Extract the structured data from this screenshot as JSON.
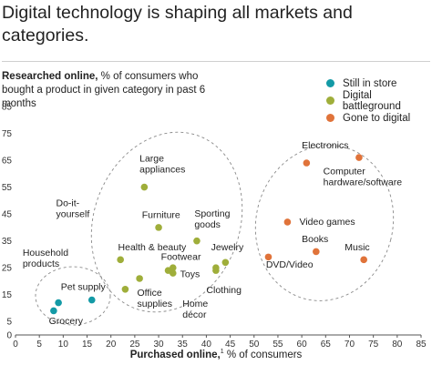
{
  "header": {
    "title": "Digital technology is shaping all markets and categories."
  },
  "chart_data": {
    "type": "scatter",
    "ylabel_bold": "Researched online,",
    "ylabel_rest": " % of consumers who bought a product in given category in past 6 months",
    "xlabel_bold": "Purchased online,",
    "xlabel_sup": "1",
    "xlabel_rest": " % of consumers",
    "xlim": [
      0,
      85
    ],
    "ylim": [
      0,
      85
    ],
    "xticks": [
      0,
      5,
      10,
      15,
      20,
      25,
      30,
      35,
      40,
      45,
      50,
      55,
      60,
      65,
      70,
      75,
      80,
      85
    ],
    "yticks": [
      0,
      5,
      15,
      25,
      35,
      45,
      55,
      65,
      75,
      85
    ],
    "grid": false,
    "legend_position": "top-right",
    "series": [
      {
        "name": "Still in store",
        "color": "#139aa6",
        "points": [
          {
            "label": "Household products",
            "x": 9,
            "y": 12
          },
          {
            "label": "",
            "x": 8,
            "y": 9
          },
          {
            "label": "Pet supply",
            "x": 16,
            "y": 13
          }
        ]
      },
      {
        "name": "Digital battleground",
        "color": "#9fae3a",
        "points": [
          {
            "label": "Large appliances",
            "x": 27,
            "y": 55
          },
          {
            "label": "Furniture",
            "x": 30,
            "y": 40
          },
          {
            "label": "Do-it-yourself",
            "x": 22,
            "y": 28
          },
          {
            "label": "Health & beauty",
            "x": 26,
            "y": 21
          },
          {
            "label": "Office supplies",
            "x": 23,
            "y": 17
          },
          {
            "label": "Footwear",
            "x": 32,
            "y": 24
          },
          {
            "label": "",
            "x": 33,
            "y": 25
          },
          {
            "label": "Home décor",
            "x": 33,
            "y": 23
          },
          {
            "label": "Sporting goods",
            "x": 38,
            "y": 35
          },
          {
            "label": "Toys",
            "x": 42,
            "y": 24
          },
          {
            "label": "Clothing",
            "x": 42,
            "y": 25
          },
          {
            "label": "Jewelry",
            "x": 44,
            "y": 27
          }
        ]
      },
      {
        "name": "Gone to digital",
        "color": "#e0733a",
        "points": [
          {
            "label": "Electronics",
            "x": 61,
            "y": 64
          },
          {
            "label": "Computer hardware/software",
            "x": 72,
            "y": 66
          },
          {
            "label": "Video games",
            "x": 57,
            "y": 42
          },
          {
            "label": "Books",
            "x": 63,
            "y": 31
          },
          {
            "label": "DVD/Video",
            "x": 53,
            "y": 29
          },
          {
            "label": "Music",
            "x": 73,
            "y": 28
          }
        ]
      }
    ],
    "annotations": [
      {
        "lines": [
          "Household",
          "products"
        ],
        "x": 1.5,
        "y": 29.5
      },
      {
        "lines": [
          "Grocery"
        ],
        "x": 7,
        "y": 4
      },
      {
        "lines": [
          "Pet supply"
        ],
        "x": 9.5,
        "y": 16.8
      },
      {
        "lines": [
          "Large",
          "appliances"
        ],
        "x": 26,
        "y": 64.5
      },
      {
        "lines": [
          "Furniture"
        ],
        "x": 26.5,
        "y": 43.5
      },
      {
        "lines": [
          "Do-it-",
          "yourself"
        ],
        "x": 8.5,
        "y": 48
      },
      {
        "lines": [
          "Health & beauty"
        ],
        "x": 21.5,
        "y": 31.5
      },
      {
        "lines": [
          "Footwear"
        ],
        "x": 30.5,
        "y": 28
      },
      {
        "lines": [
          "Sporting",
          "goods"
        ],
        "x": 37.5,
        "y": 44
      },
      {
        "lines": [
          "Jewelry"
        ],
        "x": 41,
        "y": 31.5
      },
      {
        "lines": [
          "Toys"
        ],
        "x": 34.5,
        "y": 21.5
      },
      {
        "lines": [
          "Office",
          "supplies"
        ],
        "x": 25.5,
        "y": 14.5
      },
      {
        "lines": [
          "Clothing"
        ],
        "x": 40,
        "y": 15.5
      },
      {
        "lines": [
          "Home",
          "décor"
        ],
        "x": 35,
        "y": 10.5
      },
      {
        "lines": [
          "Electronics"
        ],
        "x": 60,
        "y": 69.5
      },
      {
        "lines": [
          "Computer",
          "hardware/software"
        ],
        "x": 64.5,
        "y": 59.8
      },
      {
        "lines": [
          "Video games"
        ],
        "x": 59.5,
        "y": 41
      },
      {
        "lines": [
          "Books"
        ],
        "x": 60,
        "y": 34.5
      },
      {
        "lines": [
          "Music"
        ],
        "x": 69,
        "y": 31.5
      },
      {
        "lines": [
          "DVD/Video"
        ],
        "x": 52.5,
        "y": 25
      }
    ]
  }
}
